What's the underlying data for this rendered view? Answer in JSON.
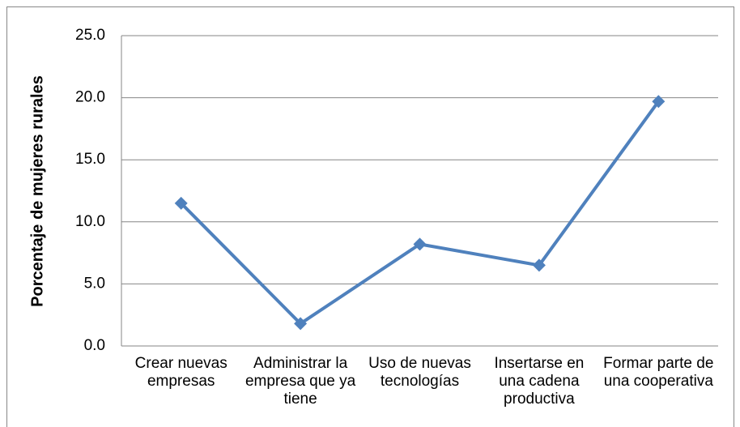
{
  "chart_data": {
    "type": "line",
    "y_label": "Porcentaje de mujeres rurales",
    "categories": [
      "Crear nuevas empresas",
      "Administrar la empresa que ya tiene",
      "Uso de nuevas tecnologías",
      "Insertarse en una cadena productiva",
      "Formar parte de una cooperativa"
    ],
    "series": [
      {
        "name": "Porcentaje",
        "color": "#4f81bd",
        "values": [
          11.5,
          1.8,
          8.2,
          6.5,
          19.7
        ]
      }
    ],
    "ylim": [
      0,
      25
    ],
    "yticks": [
      {
        "value": 0,
        "label": "0.0"
      },
      {
        "value": 5,
        "label": "5.0"
      },
      {
        "value": 10,
        "label": "10.0"
      },
      {
        "value": 15,
        "label": "15.0"
      },
      {
        "value": 20,
        "label": "20.0"
      },
      {
        "value": 25,
        "label": "25.0"
      }
    ],
    "grid": true
  }
}
